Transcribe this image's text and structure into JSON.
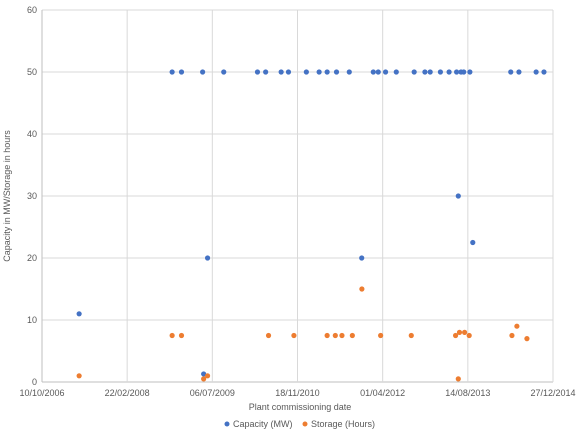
{
  "chart_data": {
    "type": "scatter",
    "xlabel": "Plant commissioning date",
    "ylabel": "Capacity in MW/Storage in hours",
    "x_ticks": [
      "10/10/2006",
      "22/02/2008",
      "06/07/2009",
      "18/11/2010",
      "01/04/2012",
      "14/08/2013",
      "27/12/2014"
    ],
    "xlim": [
      "2006-10-10",
      "2014-12-27"
    ],
    "ylim": [
      0,
      60
    ],
    "y_ticks": [
      0,
      10,
      20,
      30,
      40,
      50,
      60
    ],
    "grid": true,
    "legend_position": "bottom",
    "series": [
      {
        "name": "Capacity (MW)",
        "color": "#4472C4",
        "points": [
          {
            "x": "2007-05-16",
            "y": 11
          },
          {
            "x": "2008-11-12",
            "y": 50
          },
          {
            "x": "2009-01-06",
            "y": 50
          },
          {
            "x": "2009-05-10",
            "y": 50
          },
          {
            "x": "2009-05-16",
            "y": 1.3
          },
          {
            "x": "2009-06-08",
            "y": 20
          },
          {
            "x": "2009-09-11",
            "y": 50
          },
          {
            "x": "2010-03-28",
            "y": 50
          },
          {
            "x": "2010-05-15",
            "y": 50
          },
          {
            "x": "2010-08-14",
            "y": 50
          },
          {
            "x": "2010-09-26",
            "y": 50
          },
          {
            "x": "2011-01-09",
            "y": 50
          },
          {
            "x": "2011-03-25",
            "y": 50
          },
          {
            "x": "2011-05-11",
            "y": 50
          },
          {
            "x": "2011-07-05",
            "y": 50
          },
          {
            "x": "2011-09-18",
            "y": 50
          },
          {
            "x": "2011-11-30",
            "y": 20
          },
          {
            "x": "2012-02-06",
            "y": 50
          },
          {
            "x": "2012-03-06",
            "y": 50
          },
          {
            "x": "2012-04-18",
            "y": 50
          },
          {
            "x": "2012-06-20",
            "y": 50
          },
          {
            "x": "2012-10-03",
            "y": 50
          },
          {
            "x": "2012-12-05",
            "y": 50
          },
          {
            "x": "2013-01-05",
            "y": 50
          },
          {
            "x": "2013-03-06",
            "y": 50
          },
          {
            "x": "2013-04-26",
            "y": 50
          },
          {
            "x": "2013-06-09",
            "y": 50
          },
          {
            "x": "2013-06-19",
            "y": 30
          },
          {
            "x": "2013-07-05",
            "y": 50
          },
          {
            "x": "2013-07-21",
            "y": 50
          },
          {
            "x": "2013-08-26",
            "y": 50
          },
          {
            "x": "2013-09-12",
            "y": 22.5
          },
          {
            "x": "2014-04-23",
            "y": 50
          },
          {
            "x": "2014-06-10",
            "y": 50
          },
          {
            "x": "2014-09-19",
            "y": 50
          },
          {
            "x": "2014-11-04",
            "y": 50
          }
        ]
      },
      {
        "name": "Storage (Hours)",
        "color": "#ED7D31",
        "points": [
          {
            "x": "2007-05-16",
            "y": 1
          },
          {
            "x": "2008-11-12",
            "y": 7.5
          },
          {
            "x": "2009-01-06",
            "y": 7.5
          },
          {
            "x": "2009-05-16",
            "y": 0.5
          },
          {
            "x": "2009-06-08",
            "y": 1
          },
          {
            "x": "2010-06-01",
            "y": 7.5
          },
          {
            "x": "2010-10-28",
            "y": 7.5
          },
          {
            "x": "2011-05-11",
            "y": 7.5
          },
          {
            "x": "2011-06-28",
            "y": 7.5
          },
          {
            "x": "2011-08-06",
            "y": 7.5
          },
          {
            "x": "2011-10-06",
            "y": 7.5
          },
          {
            "x": "2011-12-01",
            "y": 15
          },
          {
            "x": "2012-03-20",
            "y": 7.5
          },
          {
            "x": "2012-09-16",
            "y": 7.5
          },
          {
            "x": "2013-06-03",
            "y": 7.5
          },
          {
            "x": "2013-06-19",
            "y": 0.5
          },
          {
            "x": "2013-06-26",
            "y": 8
          },
          {
            "x": "2013-07-26",
            "y": 8
          },
          {
            "x": "2013-08-22",
            "y": 7.5
          },
          {
            "x": "2014-04-30",
            "y": 7.5
          },
          {
            "x": "2014-05-29",
            "y": 9
          },
          {
            "x": "2014-07-27",
            "y": 7
          }
        ]
      }
    ]
  }
}
